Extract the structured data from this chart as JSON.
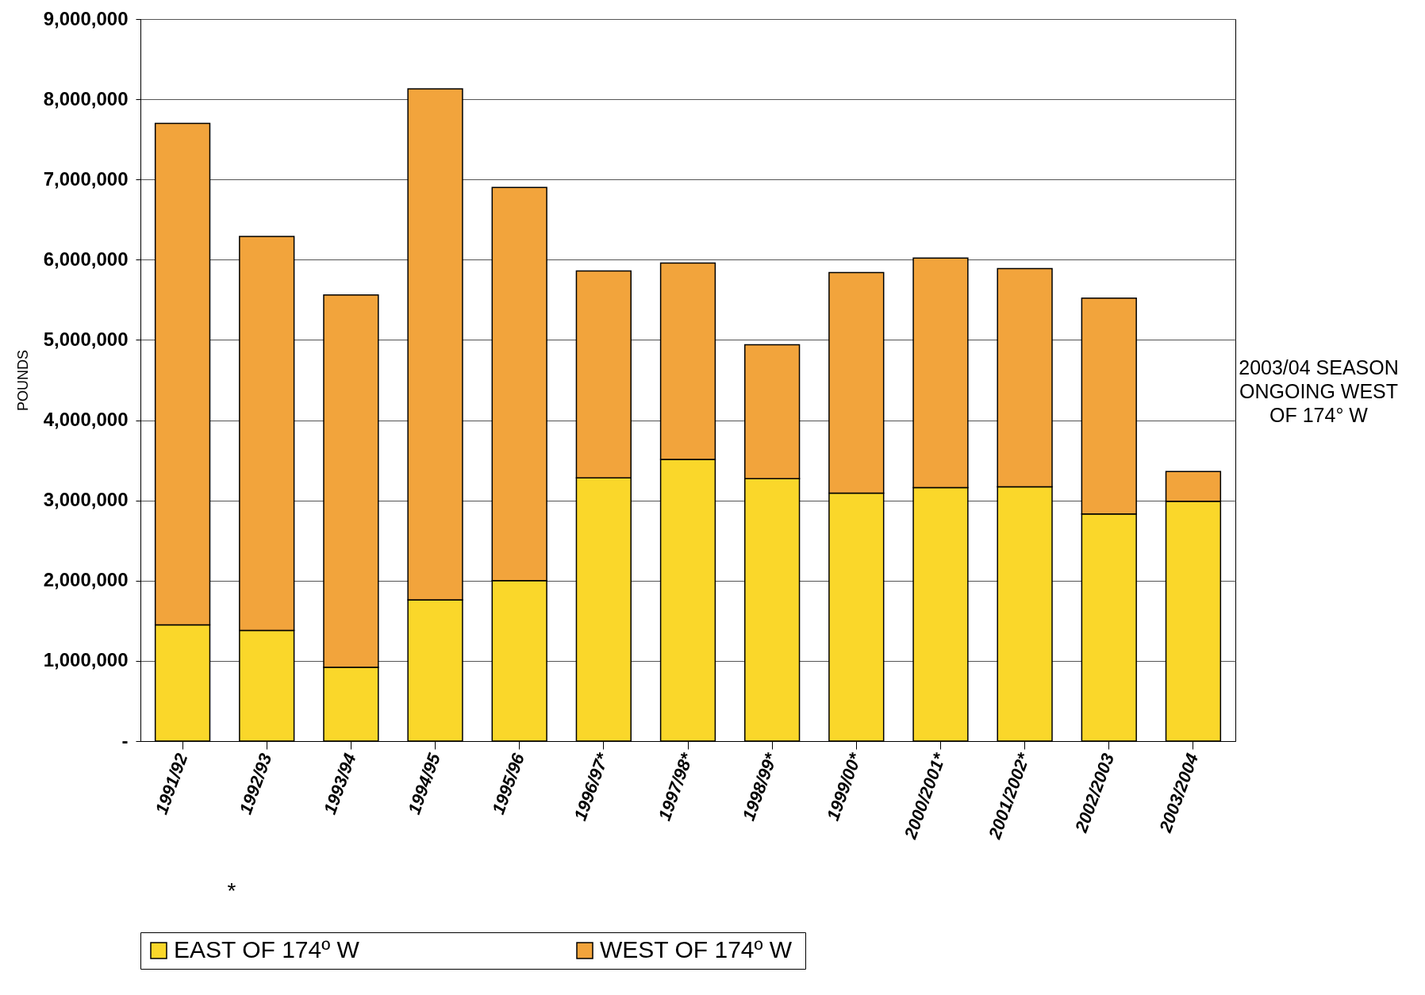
{
  "chart_data": {
    "type": "bar",
    "stacked": true,
    "ylabel": "POUNDS",
    "categories": [
      "1991/92",
      "1992/93",
      "1993/94",
      "1994/95",
      "1995/96",
      "1996/97*",
      "1997/98*",
      "1998/99*",
      "1999/00*",
      "2000/2001*",
      "2001/2002*",
      "2002/2003",
      "2003/2004"
    ],
    "series": [
      {
        "name": "EAST OF 174º  W",
        "color": "#fad72a",
        "values": [
          1450000,
          1380000,
          920000,
          1760000,
          2000000,
          3280000,
          3510000,
          3270000,
          3090000,
          3160000,
          3170000,
          2830000,
          2990000
        ]
      },
      {
        "name": "WEST OF 174º  W",
        "color": "#f2a43c",
        "values": [
          6250000,
          4910000,
          4640000,
          6370000,
          4900000,
          2580000,
          2450000,
          1670000,
          2750000,
          2860000,
          2720000,
          2690000,
          370000
        ]
      }
    ],
    "ylim": [
      0,
      9000000
    ],
    "yticks": [
      {
        "value": 0,
        "label": "-"
      },
      {
        "value": 1000000,
        "label": "1,000,000"
      },
      {
        "value": 2000000,
        "label": "2,000,000"
      },
      {
        "value": 3000000,
        "label": "3,000,000"
      },
      {
        "value": 4000000,
        "label": "4,000,000"
      },
      {
        "value": 5000000,
        "label": "5,000,000"
      },
      {
        "value": 6000000,
        "label": "6,000,000"
      },
      {
        "value": 7000000,
        "label": "7,000,000"
      },
      {
        "value": 8000000,
        "label": "8,000,000"
      },
      {
        "value": 9000000,
        "label": "9,000,000"
      }
    ],
    "grid": "y",
    "legend": "bottom",
    "annotations": [
      "2003/04 SEASON ONGOING WEST OF 174° W",
      "*"
    ]
  }
}
